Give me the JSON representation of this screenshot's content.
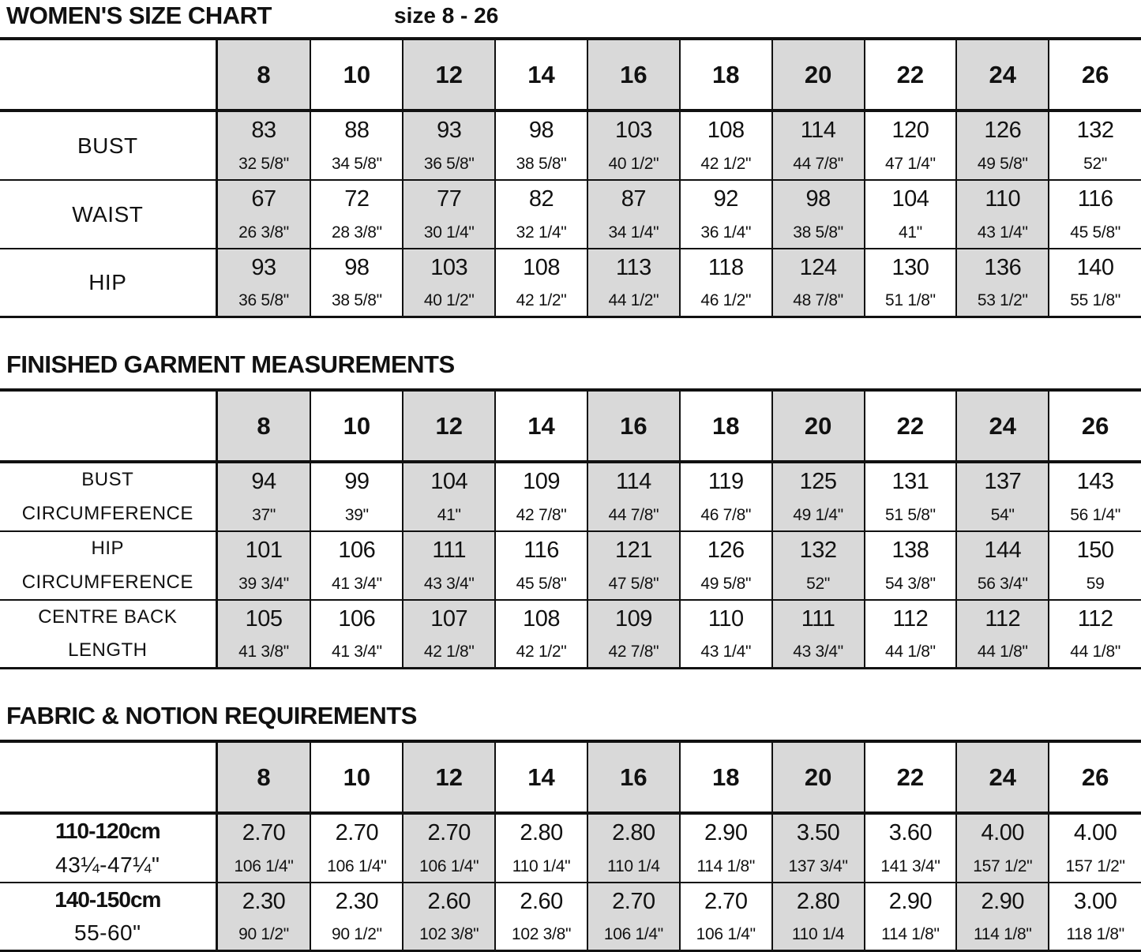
{
  "header": {
    "title": "WOMEN'S SIZE CHART",
    "subtitle": "size 8 - 26"
  },
  "colors": {
    "shaded_column": "#d9d9d9",
    "rule": "#111111"
  },
  "sections": [
    {
      "title": "",
      "sizes": [
        "8",
        "10",
        "12",
        "14",
        "16",
        "18",
        "20",
        "22",
        "24",
        "26"
      ],
      "rows": [
        {
          "label": [
            "BUST"
          ],
          "values": [
            [
              "83",
              "32 5/8\""
            ],
            [
              "88",
              "34 5/8\""
            ],
            [
              "93",
              "36 5/8\""
            ],
            [
              "98",
              "38 5/8\""
            ],
            [
              "103",
              "40 1/2\""
            ],
            [
              "108",
              "42 1/2\""
            ],
            [
              "114",
              "44 7/8\""
            ],
            [
              "120",
              "47 1/4\""
            ],
            [
              "126",
              "49 5/8\""
            ],
            [
              "132",
              "52\""
            ]
          ]
        },
        {
          "label": [
            "WAIST"
          ],
          "values": [
            [
              "67",
              "26 3/8\""
            ],
            [
              "72",
              "28 3/8\""
            ],
            [
              "77",
              "30 1/4\""
            ],
            [
              "82",
              "32 1/4\""
            ],
            [
              "87",
              "34 1/4\""
            ],
            [
              "92",
              "36 1/4\""
            ],
            [
              "98",
              "38 5/8\""
            ],
            [
              "104",
              "41\""
            ],
            [
              "110",
              "43 1/4\""
            ],
            [
              "116",
              "45 5/8\""
            ]
          ]
        },
        {
          "label": [
            "HIP"
          ],
          "values": [
            [
              "93",
              "36 5/8\""
            ],
            [
              "98",
              "38 5/8\""
            ],
            [
              "103",
              "40 1/2\""
            ],
            [
              "108",
              "42 1/2\""
            ],
            [
              "113",
              "44 1/2\""
            ],
            [
              "118",
              "46 1/2\""
            ],
            [
              "124",
              "48 7/8\""
            ],
            [
              "130",
              "51 1/8\""
            ],
            [
              "136",
              "53 1/2\""
            ],
            [
              "140",
              "55 1/8\""
            ]
          ]
        }
      ]
    },
    {
      "title": "FINISHED GARMENT MEASUREMENTS",
      "sizes": [
        "8",
        "10",
        "12",
        "14",
        "16",
        "18",
        "20",
        "22",
        "24",
        "26"
      ],
      "rows": [
        {
          "label": [
            "BUST",
            "CIRCUMFERENCE"
          ],
          "values": [
            [
              "94",
              "37\""
            ],
            [
              "99",
              "39\""
            ],
            [
              "104",
              "41\""
            ],
            [
              "109",
              "42 7/8\""
            ],
            [
              "114",
              "44 7/8\""
            ],
            [
              "119",
              "46 7/8\""
            ],
            [
              "125",
              "49 1/4\""
            ],
            [
              "131",
              "51 5/8\""
            ],
            [
              "137",
              "54\""
            ],
            [
              "143",
              "56 1/4\""
            ]
          ]
        },
        {
          "label": [
            "HIP",
            "CIRCUMFERENCE"
          ],
          "values": [
            [
              "101",
              "39 3/4\""
            ],
            [
              "106",
              "41 3/4\""
            ],
            [
              "111",
              "43 3/4\""
            ],
            [
              "116",
              "45 5/8\""
            ],
            [
              "121",
              "47 5/8\""
            ],
            [
              "126",
              "49 5/8\""
            ],
            [
              "132",
              "52\""
            ],
            [
              "138",
              "54 3/8\""
            ],
            [
              "144",
              "56 3/4\""
            ],
            [
              "150",
              "59"
            ]
          ]
        },
        {
          "label": [
            "CENTRE BACK",
            "LENGTH"
          ],
          "values": [
            [
              "105",
              "41 3/8\""
            ],
            [
              "106",
              "41 3/4\""
            ],
            [
              "107",
              "42 1/8\""
            ],
            [
              "108",
              "42 1/2\""
            ],
            [
              "109",
              "42 7/8\""
            ],
            [
              "110",
              "43 1/4\""
            ],
            [
              "111",
              "43 3/4\""
            ],
            [
              "112",
              "44 1/8\""
            ],
            [
              "112",
              "44 1/8\""
            ],
            [
              "112",
              "44 1/8\""
            ]
          ]
        }
      ]
    },
    {
      "title": "FABRIC & NOTION REQUIREMENTS",
      "sizes": [
        "8",
        "10",
        "12",
        "14",
        "16",
        "18",
        "20",
        "22",
        "24",
        "26"
      ],
      "rows": [
        {
          "label": [
            "110-120cm",
            "43¼-47¼\""
          ],
          "values": [
            [
              "2.70",
              "106 1/4\""
            ],
            [
              "2.70",
              "106 1/4\""
            ],
            [
              "2.70",
              "106 1/4\""
            ],
            [
              "2.80",
              "110 1/4\""
            ],
            [
              "2.80",
              "110 1/4"
            ],
            [
              "2.90",
              "114 1/8\""
            ],
            [
              "3.50",
              "137 3/4\""
            ],
            [
              "3.60",
              "141 3/4\""
            ],
            [
              "4.00",
              "157 1/2\""
            ],
            [
              "4.00",
              "157 1/2\""
            ]
          ]
        },
        {
          "label": [
            "140-150cm",
            "55-60\""
          ],
          "values": [
            [
              "2.30",
              "90 1/2\""
            ],
            [
              "2.30",
              "90 1/2\""
            ],
            [
              "2.60",
              "102 3/8\""
            ],
            [
              "2.60",
              "102 3/8\""
            ],
            [
              "2.70",
              "106 1/4\""
            ],
            [
              "2.70",
              "106 1/4\""
            ],
            [
              "2.80",
              "110 1/4"
            ],
            [
              "2.90",
              "114 1/8\""
            ],
            [
              "2.90",
              "114 1/8\""
            ],
            [
              "3.00",
              "118 1/8\""
            ]
          ]
        }
      ]
    }
  ]
}
